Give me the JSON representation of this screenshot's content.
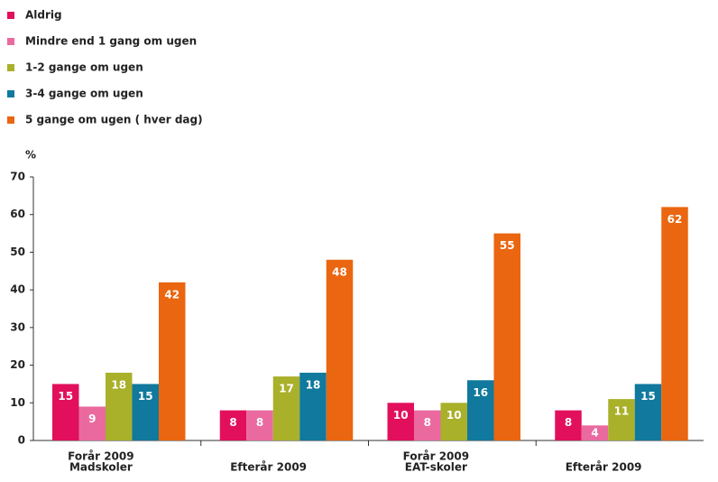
{
  "chart_data": {
    "type": "bar",
    "y_label": "%",
    "categories": [
      [
        "Forår 2009",
        "Madskoler"
      ],
      [
        "Efterår 2009"
      ],
      [
        "Forår 2009",
        "EAT-skoler"
      ],
      [
        "Efterår 2009"
      ]
    ],
    "series": [
      {
        "name": "Aldrig",
        "color": "#e2105c",
        "values": [
          15,
          8,
          10,
          8
        ]
      },
      {
        "name": "Mindre end 1 gang om ugen",
        "color": "#ea6aa0",
        "values": [
          9,
          8,
          8,
          4
        ]
      },
      {
        "name": "1-2 gange om ugen",
        "color": "#a9b02a",
        "values": [
          18,
          17,
          10,
          11
        ]
      },
      {
        "name": "3-4 gange om ugen",
        "color": "#10799d",
        "values": [
          15,
          18,
          16,
          15
        ]
      },
      {
        "name": "5 gange om ugen ( hver dag)",
        "color": "#ea6610",
        "values": [
          42,
          48,
          55,
          62
        ]
      }
    ],
    "ylim": [
      0,
      70
    ],
    "yticks": [
      0,
      10,
      20,
      30,
      40,
      50,
      60,
      70
    ],
    "grid": false,
    "legend": "top-left"
  }
}
